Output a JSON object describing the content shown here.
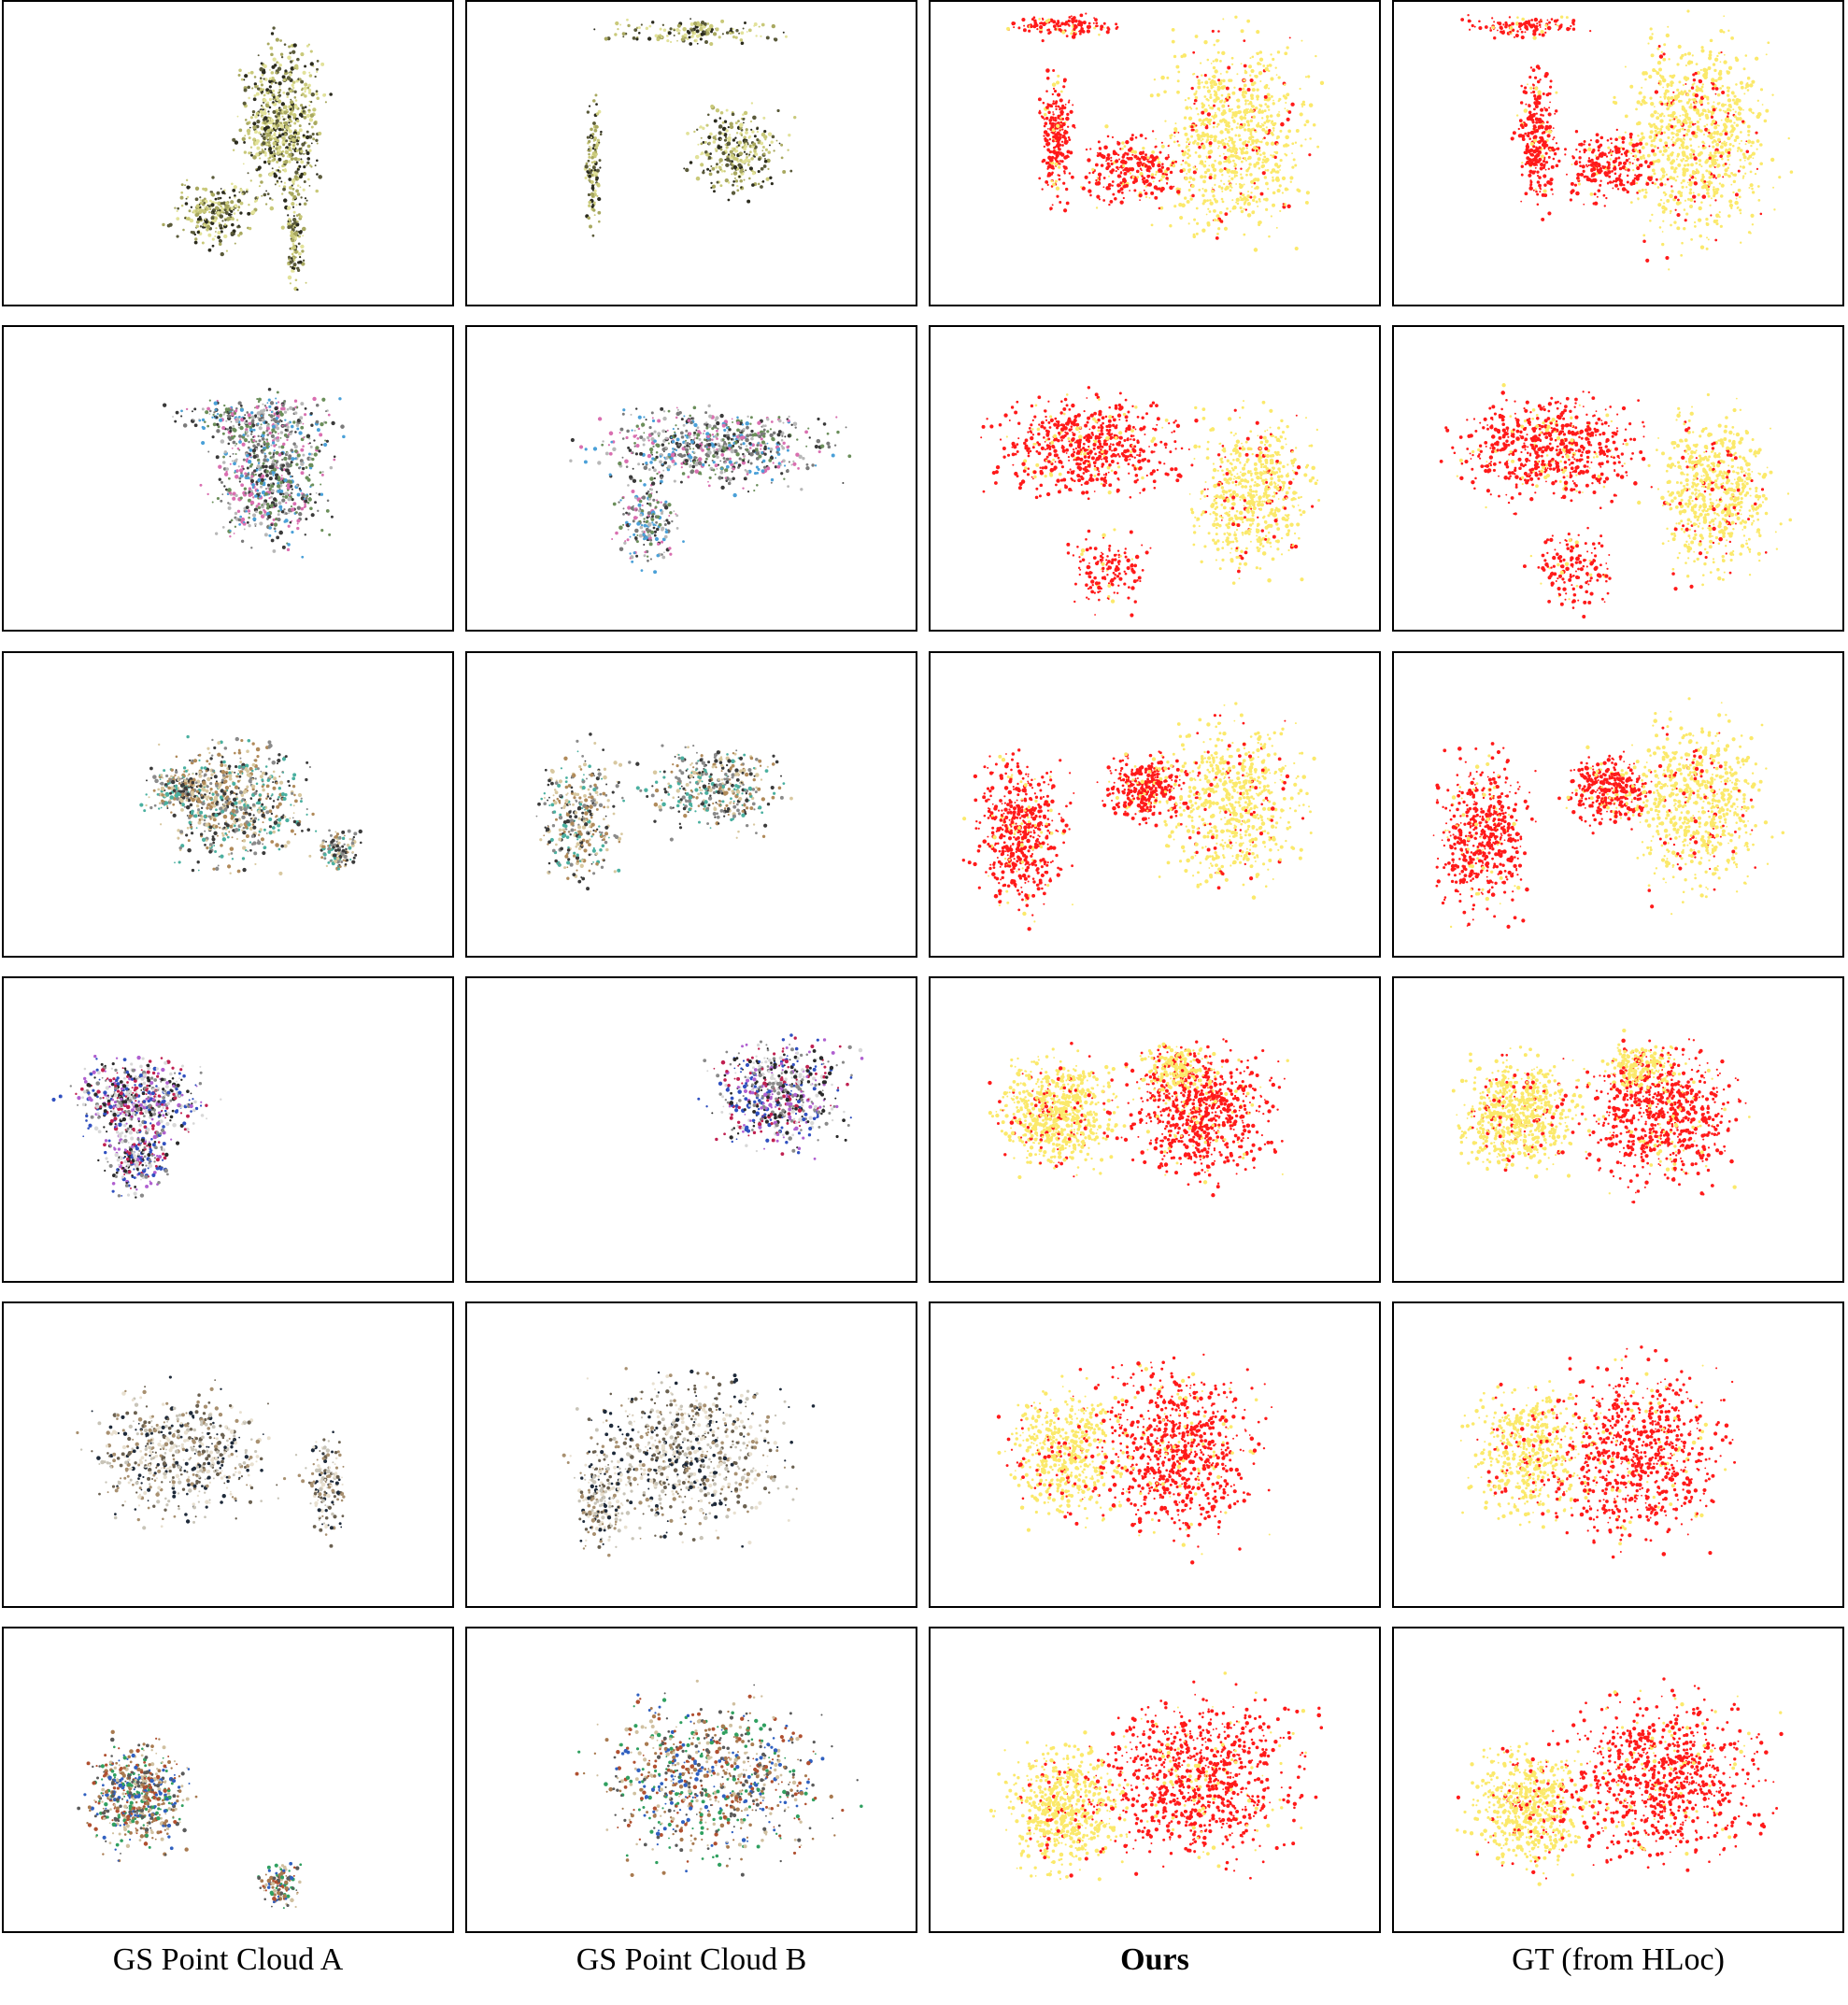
{
  "columns": [
    {
      "label": "GS Point Cloud A",
      "bold": false,
      "mode": "color"
    },
    {
      "label": "GS Point Cloud B",
      "bold": false,
      "mode": "color"
    },
    {
      "label": "Ours",
      "bold": true,
      "mode": "overlay"
    },
    {
      "label": "GT (from HLoc)",
      "bold": false,
      "mode": "overlay"
    }
  ],
  "rows": 6,
  "colors": {
    "source_cloud": "#ff1a1a",
    "target_cloud": "#fbe96b",
    "palette_row1": [
      "#c9c97a",
      "#a8a860",
      "#5a5a3a",
      "#2b2b1e",
      "#e2e29a"
    ],
    "palette_row2": [
      "#3a3a3a",
      "#7a7a7a",
      "#b8b8b8",
      "#4aa0d8",
      "#d96fb0",
      "#6b8e5a"
    ],
    "palette_row3": [
      "#3b3b3b",
      "#b08a5a",
      "#8a8a8a",
      "#4ab0a0",
      "#d8c8a0"
    ],
    "palette_row4": [
      "#8a8a8a",
      "#d8d8d8",
      "#c02050",
      "#b060d0",
      "#3050c0",
      "#2a2a2a"
    ],
    "palette_row5": [
      "#c8c4b8",
      "#6a6050",
      "#1e2a3a",
      "#a89070",
      "#e8e0d0"
    ],
    "palette_row6": [
      "#a87a50",
      "#5a5a5a",
      "#d0c0a0",
      "#30a060",
      "#b05030",
      "#3060c0"
    ]
  }
}
